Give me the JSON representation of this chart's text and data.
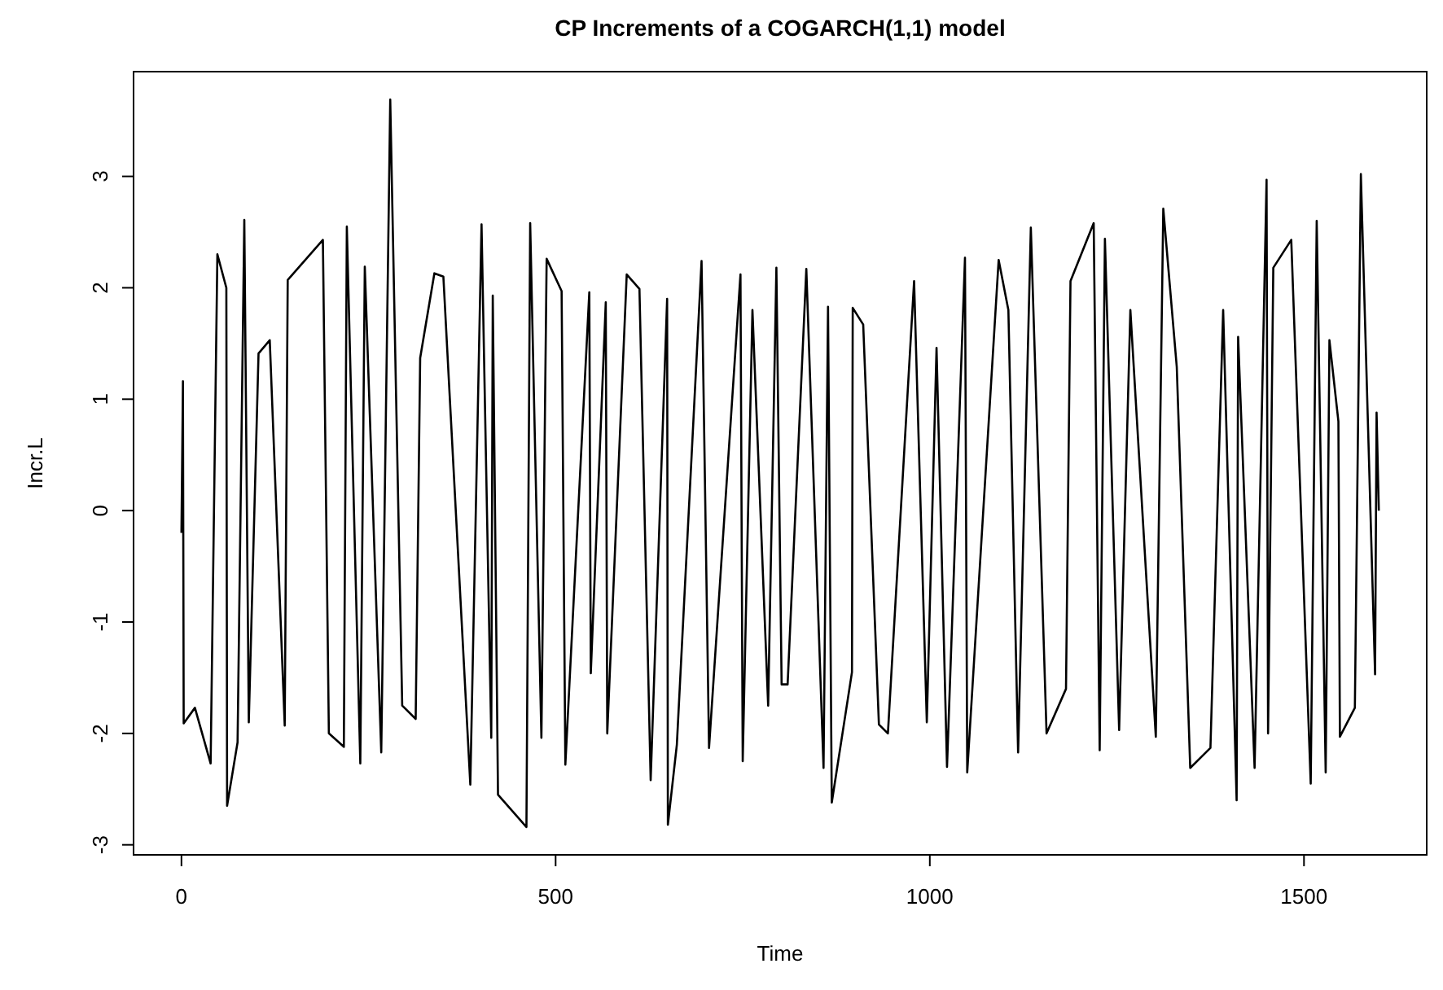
{
  "chart_data": {
    "type": "line",
    "title": "CP Increments of a COGARCH(1,1) model",
    "xlabel": "Time",
    "ylabel": "Incr.L",
    "x": [
      0,
      2,
      3,
      18,
      39,
      48,
      60,
      61,
      75,
      84,
      90,
      103,
      118,
      138,
      142,
      189,
      197,
      217,
      221,
      239,
      245,
      267,
      279,
      295,
      313,
      319,
      338,
      350,
      386,
      401,
      414,
      416,
      423,
      461,
      466,
      481,
      488,
      508,
      513,
      545,
      547,
      567,
      569,
      595,
      612,
      627,
      649,
      650,
      662,
      695,
      705,
      747,
      750,
      763,
      784,
      795,
      802,
      810,
      835,
      858,
      864,
      869,
      896,
      897,
      911,
      932,
      944,
      979,
      996,
      1009,
      1023,
      1047,
      1050,
      1092,
      1105,
      1118,
      1135,
      1156,
      1182,
      1188,
      1219,
      1227,
      1234,
      1253,
      1268,
      1302,
      1312,
      1330,
      1348,
      1375,
      1392,
      1410,
      1412,
      1434,
      1450,
      1452,
      1459,
      1483,
      1509,
      1517,
      1529,
      1534,
      1546,
      1548,
      1568,
      1576,
      1595,
      1597,
      1600
    ],
    "series": [
      {
        "color": "#000000",
        "values": [
          -0.2,
          1.16,
          -1.91,
          -1.77,
          -2.27,
          2.3,
          2.0,
          -2.65,
          -2.08,
          2.61,
          -1.9,
          1.41,
          1.53,
          -1.93,
          2.07,
          2.43,
          -2.0,
          -2.12,
          2.55,
          -2.27,
          2.19,
          -2.17,
          3.69,
          -1.75,
          -1.87,
          1.37,
          2.13,
          2.1,
          -2.46,
          2.57,
          -2.04,
          1.93,
          -2.55,
          -2.84,
          2.58,
          -2.04,
          2.26,
          1.97,
          -2.28,
          1.96,
          -1.46,
          1.87,
          -2.0,
          2.12,
          1.99,
          -2.42,
          1.9,
          -2.82,
          -2.1,
          2.24,
          -2.13,
          2.12,
          -2.25,
          1.8,
          -1.75,
          2.18,
          -1.56,
          -1.56,
          2.17,
          -2.31,
          1.83,
          -2.62,
          -1.45,
          1.82,
          1.67,
          -1.92,
          -2.0,
          2.06,
          -1.9,
          1.46,
          -2.3,
          2.27,
          -2.35,
          2.25,
          1.8,
          -2.17,
          2.54,
          -2.0,
          -1.6,
          2.06,
          2.58,
          -2.15,
          2.44,
          -1.97,
          1.8,
          -2.03,
          2.71,
          1.29,
          -2.31,
          -2.13,
          1.8,
          -2.6,
          1.56,
          -2.31,
          2.97,
          -2.0,
          2.18,
          2.43,
          -2.45,
          2.6,
          -2.35,
          1.53,
          0.8,
          -2.03,
          -1.77,
          3.02,
          -1.47,
          0.88,
          0
        ]
      }
    ],
    "xlim": [
      -64,
      1664
    ],
    "ylim": [
      -3.09,
      3.94
    ],
    "xticks": [
      0,
      500,
      1000,
      1500
    ],
    "yticks": [
      -3,
      -2,
      -1,
      0,
      1,
      2,
      3
    ],
    "grid": false,
    "marker": "none",
    "line_style": "solid"
  }
}
